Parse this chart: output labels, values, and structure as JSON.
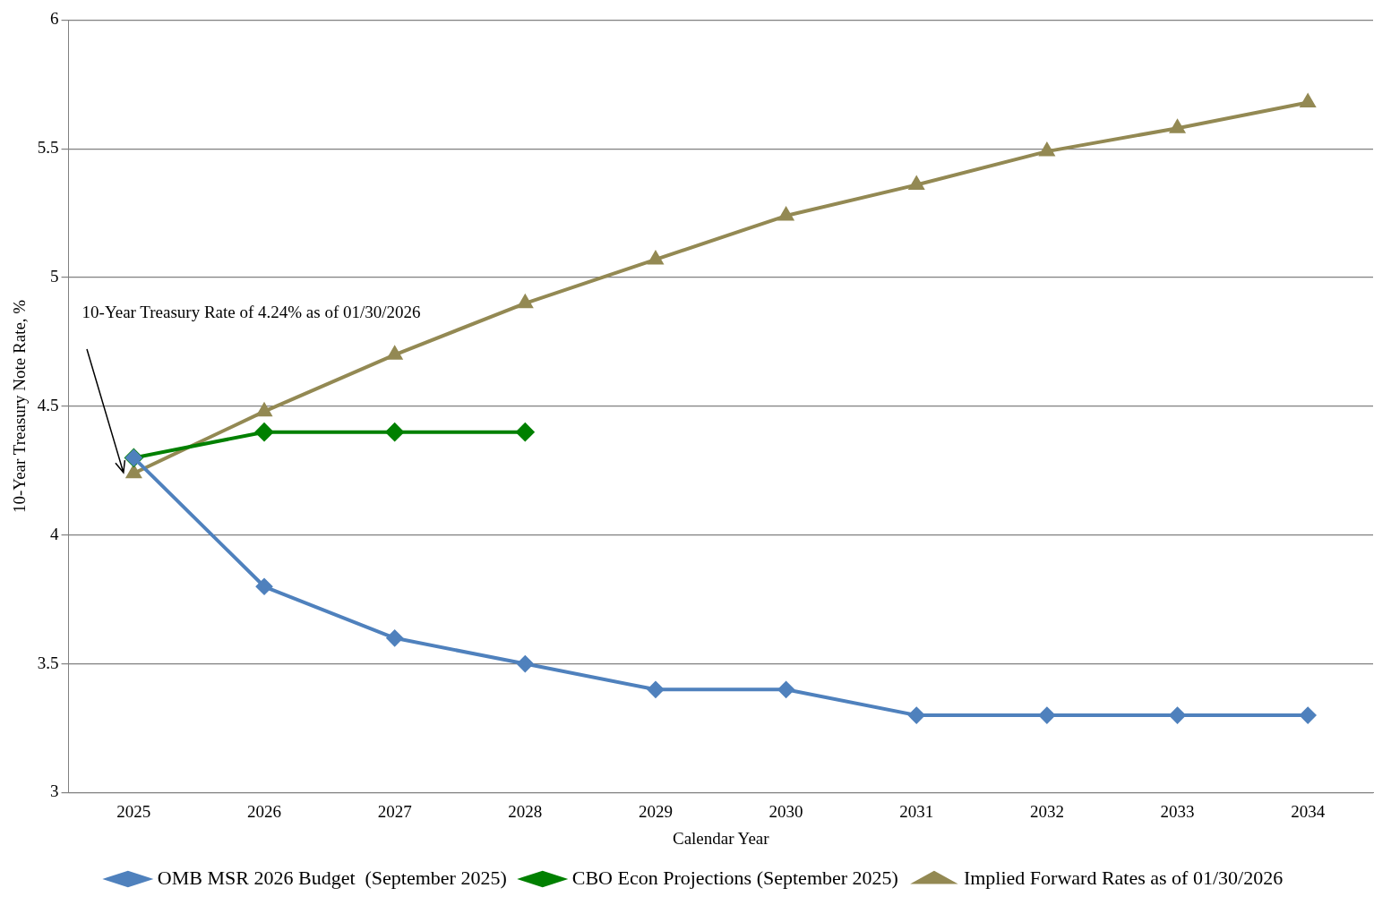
{
  "chart_data": {
    "type": "line",
    "xlabel": "Calendar Year",
    "ylabel": "10-Year Treasury Note Rate, %",
    "categories": [
      "2025",
      "2026",
      "2027",
      "2028",
      "2029",
      "2030",
      "2031",
      "2032",
      "2033",
      "2034"
    ],
    "series": [
      {
        "name": "Implied Forward Rates as of 01/30/2026",
        "color": "#938953",
        "marker": "triangle",
        "values": [
          4.24,
          4.48,
          4.7,
          4.9,
          5.07,
          5.24,
          5.36,
          5.49,
          5.58,
          5.68
        ]
      },
      {
        "name": "CBO Econ Projections (September 2025)",
        "color": "#008000",
        "marker": "diamond",
        "values": [
          4.3,
          4.4,
          4.4,
          4.4,
          null,
          null,
          null,
          null,
          null,
          null
        ]
      },
      {
        "name": "OMB MSR 2026 Budget  (September 2025)",
        "color": "#4f81bd",
        "marker": "diamond",
        "values": [
          4.3,
          3.8,
          3.6,
          3.5,
          3.4,
          3.4,
          3.3,
          3.3,
          3.3,
          3.3
        ]
      }
    ],
    "ylim": [
      3,
      6
    ],
    "yticks": [
      3,
      3.5,
      4,
      4.5,
      5,
      5.5,
      6
    ],
    "grid": "y",
    "legend": "bottom",
    "annotations": [
      "10-Year Treasury Rate of 4.24% as of 01/30/2026"
    ]
  }
}
